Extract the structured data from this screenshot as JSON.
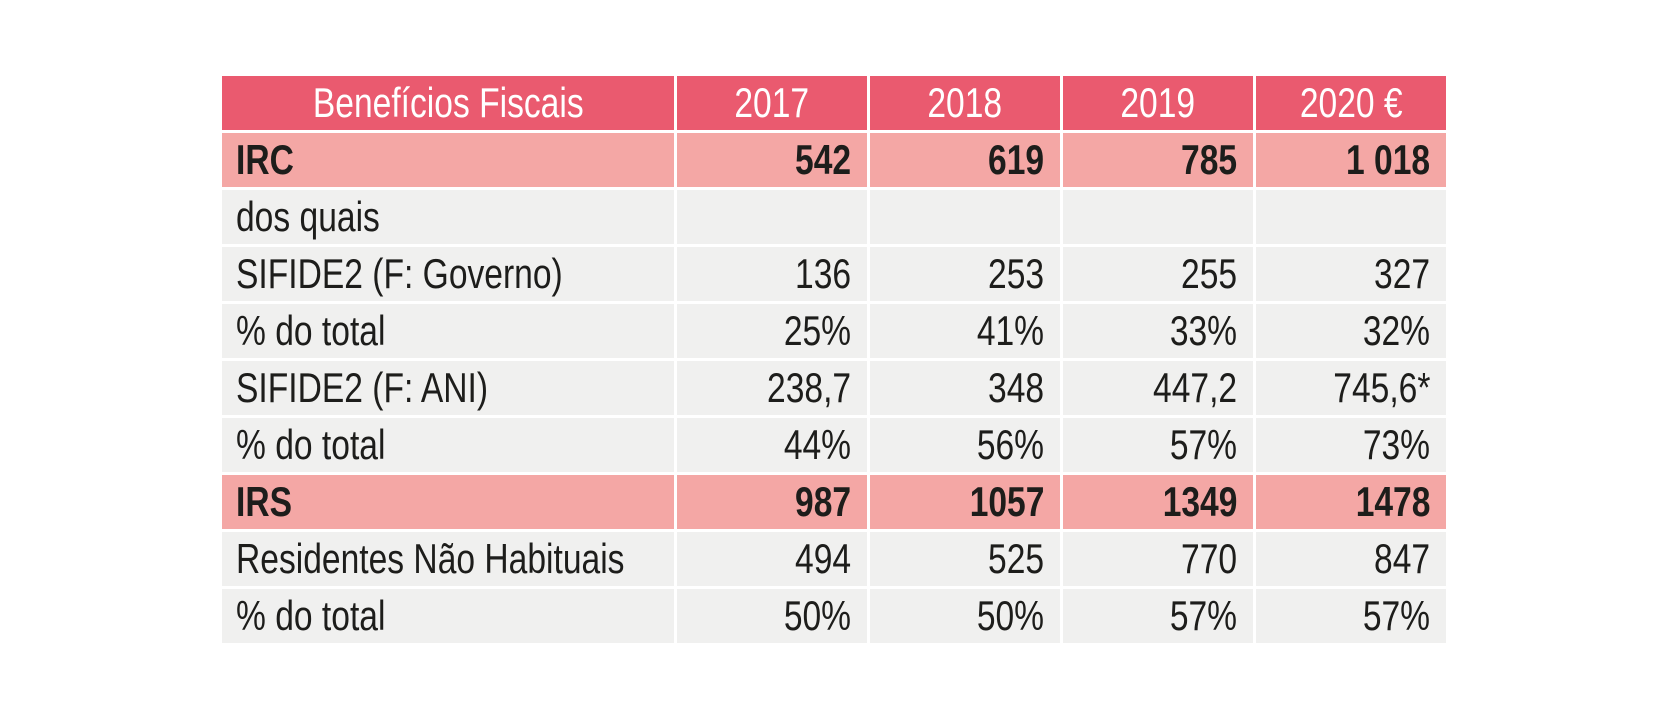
{
  "colors": {
    "page_background": "#FFFFFF",
    "header_background": "#EA5A6F",
    "header_text": "#FFFFFF",
    "highlight_row_background": "#F4A7A5",
    "row_background": "#F0F0EF",
    "body_text": "#1D1D1B",
    "gridline": "#FFFFFF"
  },
  "table": {
    "header": {
      "label": "Benefícios Fiscais",
      "years": [
        "2017",
        "2018",
        "2019",
        "2020 €"
      ]
    },
    "rows": [
      {
        "label": "IRC",
        "values": [
          "542",
          "619",
          "785",
          "1 018"
        ],
        "style": "highlight"
      },
      {
        "label": "dos quais",
        "values": [
          "",
          "",
          "",
          ""
        ],
        "style": "normal"
      },
      {
        "label": "SIFIDE2 (F: Governo)",
        "values": [
          "136",
          "253",
          "255",
          "327"
        ],
        "style": "normal"
      },
      {
        "label": "% do total",
        "values": [
          "25%",
          "41%",
          "33%",
          "32%"
        ],
        "style": "normal"
      },
      {
        "label": "SIFIDE2 (F: ANI)",
        "values": [
          "238,7",
          "348",
          "447,2",
          "745,6*"
        ],
        "style": "normal"
      },
      {
        "label": "% do total",
        "values": [
          "44%",
          "56%",
          "57%",
          "73%"
        ],
        "style": "normal"
      },
      {
        "label": "IRS",
        "values": [
          "987",
          "1057",
          "1349",
          "1478"
        ],
        "style": "highlight"
      },
      {
        "label": "Residentes Não Habituais",
        "values": [
          "494",
          "525",
          "770",
          "847"
        ],
        "style": "normal"
      },
      {
        "label": "% do total",
        "values": [
          "50%",
          "50%",
          "57%",
          "57%"
        ],
        "style": "normal"
      }
    ]
  },
  "chart_data": {
    "type": "table",
    "title": "Benefícios Fiscais",
    "columns": [
      "Benefícios Fiscais",
      "2017",
      "2018",
      "2019",
      "2020 €"
    ],
    "rows": [
      [
        "IRC",
        "542",
        "619",
        "785",
        "1 018"
      ],
      [
        "dos quais",
        "",
        "",
        "",
        ""
      ],
      [
        "SIFIDE2 (F: Governo)",
        "136",
        "253",
        "255",
        "327"
      ],
      [
        "% do total",
        "25%",
        "41%",
        "33%",
        "32%"
      ],
      [
        "SIFIDE2 (F: ANI)",
        "238,7",
        "348",
        "447,2",
        "745,6*"
      ],
      [
        "% do total",
        "44%",
        "56%",
        "57%",
        "73%"
      ],
      [
        "IRS",
        "987",
        "1057",
        "1349",
        "1478"
      ],
      [
        "Residentes Não Habituais",
        "494",
        "525",
        "770",
        "847"
      ],
      [
        "% do total",
        "50%",
        "50%",
        "57%",
        "57%"
      ]
    ],
    "highlighted_rows": [
      "IRC",
      "IRS"
    ],
    "annotations": [
      "745,6* carries an asterisk footnote marker",
      "2020 column header includes € unit symbol"
    ]
  }
}
